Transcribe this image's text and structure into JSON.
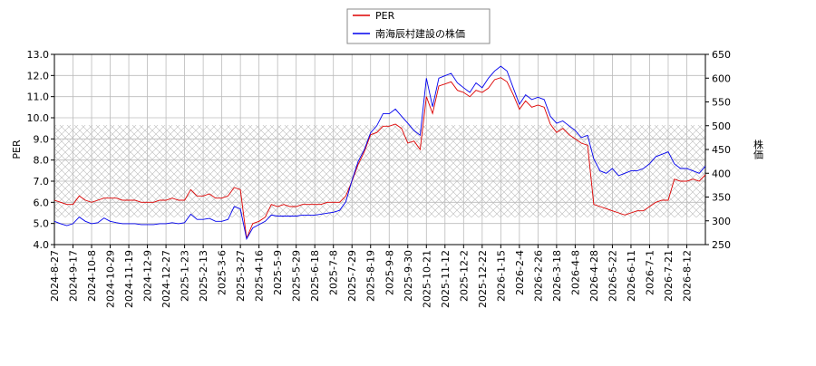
{
  "chart_data": {
    "type": "line",
    "categories": [
      "2024-8-27",
      null,
      null,
      "2024-9-17",
      null,
      null,
      "2024-10-8",
      null,
      null,
      "2024-10-29",
      null,
      null,
      "2024-11-19",
      null,
      null,
      "2024-12-9",
      null,
      null,
      "2024-12-27",
      null,
      null,
      "2025-1-23",
      null,
      null,
      "2025-2-13",
      null,
      null,
      "2025-3-6",
      null,
      null,
      "2025-3-27",
      null,
      null,
      "2025-4-16",
      null,
      null,
      "2025-5-9",
      null,
      null,
      "2025-5-29",
      null,
      null,
      "2025-6-18",
      null,
      null,
      "2025-7-8",
      null,
      null,
      "2025-7-29",
      null,
      null,
      "2025-8-19",
      null,
      null,
      "2025-9-8",
      null,
      null,
      "2025-9-30",
      null,
      null,
      "2025-10-21",
      null,
      null,
      "2025-11-12",
      null,
      null,
      "2025-12-2",
      null,
      null,
      "2025-12-22",
      null,
      null,
      "2026-1-15",
      null,
      null,
      "2026-2-4",
      null,
      null,
      "2026-2-26",
      null,
      null,
      "2026-3-18",
      null,
      null,
      "2026-4-8",
      null,
      null,
      "2026-4-28",
      null,
      null,
      "2026-5-22",
      null,
      null,
      "2026-6-11",
      null,
      null,
      "2026-7-1",
      null,
      null,
      "2026-7-21",
      null,
      null,
      "2026-8-12",
      null,
      null,
      null
    ],
    "series": [
      {
        "name": "PER",
        "color": "#dd0000",
        "axis": "y",
        "values": [
          6.1,
          6.0,
          5.9,
          5.9,
          6.3,
          6.1,
          6.0,
          6.1,
          6.2,
          6.2,
          6.2,
          6.1,
          6.1,
          6.1,
          6.0,
          6.0,
          6.0,
          6.1,
          6.1,
          6.2,
          6.1,
          6.1,
          6.6,
          6.3,
          6.3,
          6.4,
          6.2,
          6.2,
          6.3,
          6.7,
          6.6,
          4.3,
          5.0,
          5.1,
          5.3,
          5.9,
          5.8,
          5.9,
          5.8,
          5.8,
          5.9,
          5.9,
          5.9,
          5.9,
          6.0,
          6.0,
          6.0,
          6.3,
          7.0,
          7.8,
          8.4,
          9.2,
          9.3,
          9.6,
          9.6,
          9.7,
          9.5,
          8.8,
          8.9,
          8.5,
          11.0,
          10.2,
          11.5,
          11.6,
          11.7,
          11.3,
          11.2,
          11.0,
          11.3,
          11.2,
          11.4,
          11.8,
          11.9,
          11.7,
          11.1,
          10.4,
          10.8,
          10.5,
          10.6,
          10.5,
          9.7,
          9.3,
          9.5,
          9.2,
          9.0,
          8.8,
          8.7,
          5.9,
          5.8,
          5.7,
          5.6,
          5.5,
          5.4,
          5.5,
          5.6,
          5.6,
          5.8,
          6.0,
          6.1,
          6.1,
          7.1,
          7.0,
          7.0,
          7.1,
          7.0,
          7.3
        ]
      },
      {
        "name": "南海辰村建設の株価",
        "color": "#0000ee",
        "axis": "y2",
        "values": [
          299,
          294,
          290,
          294,
          308,
          299,
          294,
          296,
          306,
          299,
          296,
          294,
          294,
          294,
          292,
          292,
          292,
          294,
          294,
          296,
          294,
          296,
          314,
          303,
          303,
          305,
          299,
          299,
          303,
          330,
          325,
          262,
          285,
          292,
          299,
          312,
          310,
          310,
          310,
          310,
          312,
          312,
          312,
          314,
          316,
          318,
          322,
          340,
          385,
          425,
          450,
          485,
          500,
          525,
          525,
          535,
          520,
          505,
          490,
          480,
          600,
          540,
          600,
          605,
          610,
          590,
          580,
          570,
          590,
          580,
          600,
          615,
          625,
          615,
          580,
          545,
          565,
          555,
          560,
          555,
          520,
          505,
          510,
          500,
          490,
          475,
          480,
          430,
          405,
          400,
          410,
          395,
          400,
          405,
          405,
          410,
          420,
          435,
          440,
          445,
          420,
          410,
          410,
          405,
          400,
          415
        ]
      }
    ],
    "ylabel": "PER",
    "y2label": "株価",
    "ylim": [
      4,
      13
    ],
    "yticks": [
      {
        "value": 4,
        "label": "4.0"
      },
      {
        "value": 5,
        "label": "5.0"
      },
      {
        "value": 6,
        "label": "6.0"
      },
      {
        "value": 7,
        "label": "7.0"
      },
      {
        "value": 8,
        "label": "8.0"
      },
      {
        "value": 9,
        "label": "9.0"
      },
      {
        "value": 10,
        "label": "10.0"
      },
      {
        "value": 11,
        "label": "11.0"
      },
      {
        "value": 12,
        "label": "12.0"
      },
      {
        "value": 13,
        "label": "13.0"
      }
    ],
    "y2lim": [
      250,
      650
    ],
    "y2ticks": [
      250,
      300,
      350,
      400,
      450,
      500,
      550,
      600,
      650
    ],
    "grid": true
  }
}
